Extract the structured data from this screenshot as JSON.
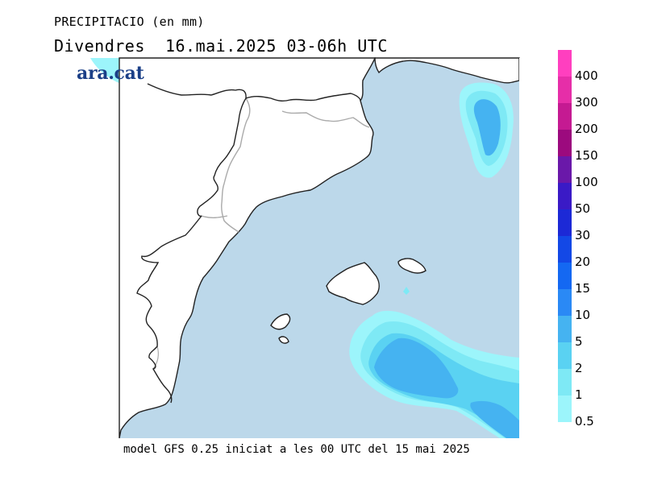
{
  "header": {
    "title": "PRECIPITACIO (en mm)",
    "subtitle": "Divendres  16.mai.2025 03-06h UTC"
  },
  "brand": {
    "logo_text": "ara.cat",
    "logo_color": "#1b3f87"
  },
  "footer": {
    "text": "model GFS 0.25 iniciat a les 00 UTC del 15 mai 2025"
  },
  "map": {
    "sea_color": "#bcd8ea",
    "land_color": "#ffffff",
    "coast_color": "#222222",
    "border_color": "#aaaaaa",
    "precip_colors": {
      "0.5": "#9cf5fb",
      "1": "#7ee9f5",
      "2": "#5ad2f2",
      "5": "#45b3f1"
    }
  },
  "legend": {
    "items": [
      {
        "label": "400",
        "color": "#ff3fbf"
      },
      {
        "label": "300",
        "color": "#e62ea8"
      },
      {
        "label": "200",
        "color": "#c51a92"
      },
      {
        "label": "150",
        "color": "#9c0a7e"
      },
      {
        "label": "100",
        "color": "#6a18a9"
      },
      {
        "label": "50",
        "color": "#3a1ac6"
      },
      {
        "label": "30",
        "color": "#1c29d6"
      },
      {
        "label": "20",
        "color": "#1348e6"
      },
      {
        "label": "15",
        "color": "#1468f2"
      },
      {
        "label": "10",
        "color": "#2a89f5"
      },
      {
        "label": "5",
        "color": "#45b3f1"
      },
      {
        "label": "2",
        "color": "#5ad2f2"
      },
      {
        "label": "1",
        "color": "#7ee9f5"
      },
      {
        "label": "0.5",
        "color": "#9cf5fb"
      }
    ]
  }
}
